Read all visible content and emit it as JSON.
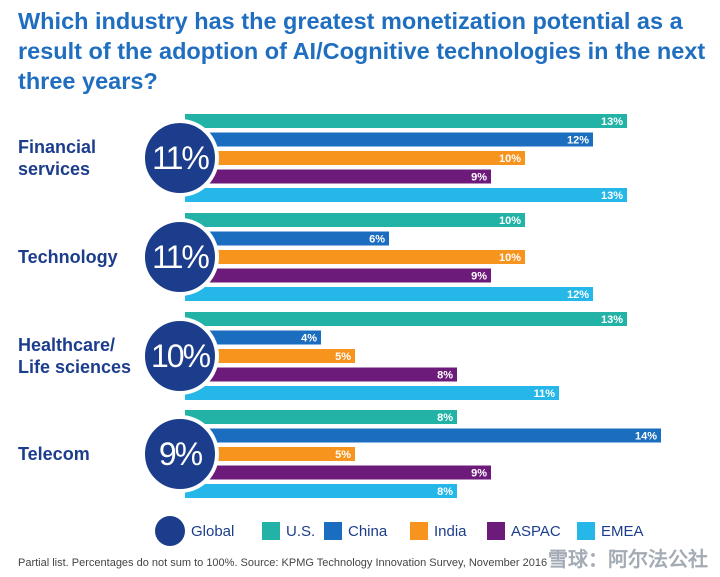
{
  "title": "Which industry has the greatest monetization potential as a result of the adoption of AI/Cognitive technologies in the next three years?",
  "footnote": "Partial list. Percentages do not sum to 100%. Source: KPMG Technology Innovation Survey, November 2016",
  "watermark": "雪球：阿尔法公社",
  "colors": {
    "title": "#1f6ebf",
    "Global": "#1c3d8c",
    "U.S.": "#22b3a6",
    "China": "#1a6dbf",
    "India": "#f7941d",
    "ASPAC": "#6d1b7b",
    "EMEA": "#25b7e8"
  },
  "chart_data": {
    "type": "bar",
    "orientation": "horizontal",
    "categories": [
      "Financial services",
      "Technology",
      "Healthcare/ Life sciences",
      "Telecom"
    ],
    "global": [
      {
        "category": "Financial services",
        "value": 11,
        "label": "11%"
      },
      {
        "category": "Technology",
        "value": 11,
        "label": "11%"
      },
      {
        "category": "Healthcare/ Life sciences",
        "value": 10,
        "label": "10%"
      },
      {
        "category": "Telecom",
        "value": 9,
        "label": "9%"
      }
    ],
    "series": [
      {
        "name": "U.S.",
        "values": [
          13,
          10,
          13,
          8
        ],
        "labels": [
          "13%",
          "10%",
          "13%",
          "8%"
        ]
      },
      {
        "name": "China",
        "values": [
          12,
          6,
          4,
          14
        ],
        "labels": [
          "12%",
          "6%",
          "4%",
          "14%"
        ]
      },
      {
        "name": "India",
        "values": [
          10,
          10,
          5,
          5
        ],
        "labels": [
          "10%",
          "10%",
          "5%",
          "5%"
        ]
      },
      {
        "name": "ASPAC",
        "values": [
          9,
          9,
          8,
          9
        ],
        "labels": [
          "9%",
          "9%",
          "8%",
          "9%"
        ]
      },
      {
        "name": "EMEA",
        "values": [
          13,
          12,
          11,
          8
        ],
        "labels": [
          "13%",
          "12%",
          "11%",
          "8%"
        ]
      }
    ],
    "legend": [
      "Global",
      "U.S.",
      "China",
      "India",
      "ASPAC",
      "EMEA"
    ],
    "legend_position": "bottom",
    "grid": false
  }
}
